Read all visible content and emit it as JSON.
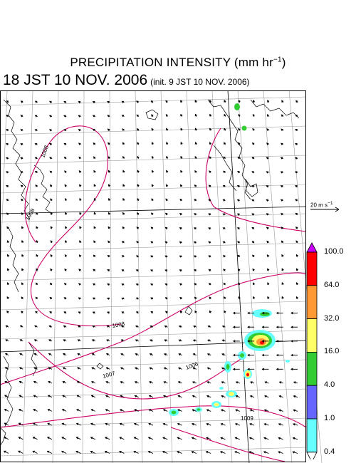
{
  "title": {
    "main": "PRECIPITATION INTENSITY (mm hr",
    "unit_sup": "−1",
    "close": ")"
  },
  "valid_time": "18 JST 10 NOV. 2006",
  "init_time": "(init. 9 JST 10 NOV. 2006)",
  "wind_scale": {
    "label": "20 m s",
    "sup": "−1"
  },
  "colorbar": {
    "levels": [
      "100.0",
      "64.0",
      "32.0",
      "16.0",
      "4.0",
      "1.0",
      "0.4"
    ],
    "colors": [
      "#cc00ff",
      "#ff0000",
      "#ff9933",
      "#ffff66",
      "#33cc33",
      "#6666ff",
      "#66ffff",
      "#ffffff"
    ]
  },
  "isobar_labels": [
    "1008",
    "1008",
    "1008",
    "1007",
    "1006",
    "1009"
  ],
  "colors": {
    "isobar": "#cc0066",
    "coast": "#000000",
    "grid": "#9a9a9a",
    "wind": "#000000"
  }
}
